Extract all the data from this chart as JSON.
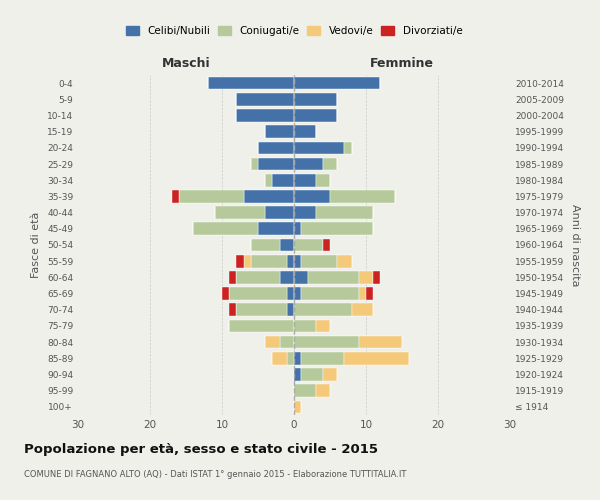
{
  "age_groups": [
    "100+",
    "95-99",
    "90-94",
    "85-89",
    "80-84",
    "75-79",
    "70-74",
    "65-69",
    "60-64",
    "55-59",
    "50-54",
    "45-49",
    "40-44",
    "35-39",
    "30-34",
    "25-29",
    "20-24",
    "15-19",
    "10-14",
    "5-9",
    "0-4"
  ],
  "birth_years": [
    "≤ 1914",
    "1915-1919",
    "1920-1924",
    "1925-1929",
    "1930-1934",
    "1935-1939",
    "1940-1944",
    "1945-1949",
    "1950-1954",
    "1955-1959",
    "1960-1964",
    "1965-1969",
    "1970-1974",
    "1975-1979",
    "1980-1984",
    "1985-1989",
    "1990-1994",
    "1995-1999",
    "2000-2004",
    "2005-2009",
    "2010-2014"
  ],
  "colors": {
    "celibi": "#4472a8",
    "coniugati": "#b5c99a",
    "vedovi": "#f5c97a",
    "divorziati": "#cc2222"
  },
  "maschi": {
    "celibi": [
      0,
      0,
      0,
      0,
      0,
      0,
      1,
      1,
      2,
      1,
      2,
      5,
      4,
      7,
      3,
      5,
      5,
      4,
      8,
      8,
      12
    ],
    "coniugati": [
      0,
      0,
      0,
      1,
      2,
      9,
      7,
      8,
      6,
      5,
      4,
      9,
      7,
      9,
      1,
      1,
      0,
      0,
      0,
      0,
      0
    ],
    "vedovi": [
      0,
      0,
      0,
      2,
      2,
      0,
      0,
      0,
      0,
      1,
      0,
      0,
      0,
      0,
      0,
      0,
      0,
      0,
      0,
      0,
      0
    ],
    "divorziati": [
      0,
      0,
      0,
      0,
      0,
      0,
      1,
      1,
      1,
      1,
      0,
      0,
      0,
      1,
      0,
      0,
      0,
      0,
      0,
      0,
      0
    ]
  },
  "femmine": {
    "celibi": [
      0,
      0,
      1,
      1,
      0,
      0,
      0,
      1,
      2,
      1,
      0,
      1,
      3,
      5,
      3,
      4,
      7,
      3,
      6,
      6,
      12
    ],
    "coniugati": [
      0,
      3,
      3,
      6,
      9,
      3,
      8,
      8,
      7,
      5,
      4,
      10,
      8,
      9,
      2,
      2,
      1,
      0,
      0,
      0,
      0
    ],
    "vedovi": [
      1,
      2,
      2,
      9,
      6,
      2,
      3,
      1,
      2,
      2,
      0,
      0,
      0,
      0,
      0,
      0,
      0,
      0,
      0,
      0,
      0
    ],
    "divorziati": [
      0,
      0,
      0,
      0,
      0,
      0,
      0,
      1,
      1,
      0,
      1,
      0,
      0,
      0,
      0,
      0,
      0,
      0,
      0,
      0,
      0
    ]
  },
  "xlim": 30,
  "title": "Popolazione per età, sesso e stato civile - 2015",
  "subtitle": "COMUNE DI FAGNANO ALTO (AQ) - Dati ISTAT 1° gennaio 2015 - Elaborazione TUTTITALIA.IT",
  "ylabel_left": "Fasce di età",
  "ylabel_right": "Anni di nascita",
  "xlabel_left": "Maschi",
  "xlabel_right": "Femmine",
  "legend_labels": [
    "Celibi/Nubili",
    "Coniugati/e",
    "Vedovi/e",
    "Divorziati/e"
  ],
  "background_color": "#f0f0eb"
}
